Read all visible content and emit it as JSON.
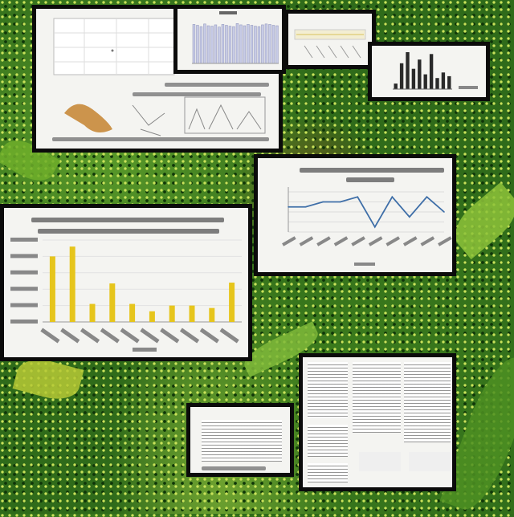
{
  "scene": {
    "description_colors": {
      "bar_yellow": "#e6c51c",
      "line_blue": "#3f6fa8",
      "panel_border": "#0b0b0b",
      "panel_bg": "#f4f4f1"
    }
  },
  "main_bar_chart": {
    "chart_data": {
      "type": "bar",
      "categories": [
        "",
        "",
        "",
        "",
        "",
        "",
        "",
        "",
        "",
        ""
      ],
      "values": [
        80,
        92,
        22,
        47,
        22,
        13,
        20,
        20,
        17,
        48
      ],
      "ylim": [
        0,
        100
      ],
      "grid": true
    }
  },
  "line_chart": {
    "chart_data": {
      "type": "line",
      "x": [
        0,
        1,
        2,
        3,
        4,
        5,
        6,
        7,
        8,
        9
      ],
      "y": [
        2,
        2,
        3,
        3,
        4,
        -2,
        4,
        0,
        4,
        1
      ],
      "ylim": [
        -3,
        5
      ],
      "grid": true
    }
  },
  "top_bar_chart": {
    "chart_data": {
      "type": "bar",
      "values": [
        90,
        88,
        85,
        91,
        87,
        86,
        89,
        84,
        90,
        88,
        86,
        85,
        92,
        89,
        87,
        90,
        88,
        86,
        85,
        89,
        91,
        90,
        88,
        87
      ],
      "ylim": [
        0,
        100
      ]
    }
  },
  "small_bar_chart": {
    "chart_data": {
      "type": "bar",
      "values": [
        15,
        70,
        100,
        55,
        80,
        40,
        95,
        30,
        45,
        35
      ],
      "ylim": [
        0,
        100
      ]
    }
  }
}
